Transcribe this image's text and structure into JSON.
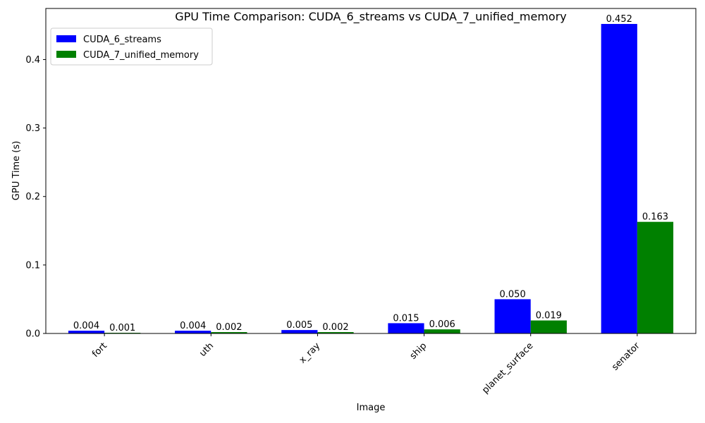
{
  "chart_data": {
    "type": "bar",
    "title": "GPU Time Comparison: CUDA_6_streams vs CUDA_7_unified_memory",
    "xlabel": "Image",
    "ylabel": "GPU Time (s)",
    "categories": [
      "fort",
      "uth",
      "x_ray",
      "ship",
      "planet_surface",
      "senator"
    ],
    "series": [
      {
        "name": "CUDA_6_streams",
        "color": "#0000ff",
        "values": [
          0.004,
          0.004,
          0.005,
          0.015,
          0.05,
          0.452
        ],
        "labels": [
          "0.004",
          "0.004",
          "0.005",
          "0.015",
          "0.050",
          "0.452"
        ]
      },
      {
        "name": "CUDA_7_unified_memory",
        "color": "#008000",
        "values": [
          0.001,
          0.002,
          0.002,
          0.006,
          0.019,
          0.163
        ],
        "labels": [
          "0.001",
          "0.002",
          "0.002",
          "0.006",
          "0.019",
          "0.163"
        ]
      }
    ],
    "ylim": [
      0,
      0.4746
    ],
    "yticks": [
      0.0,
      0.1,
      0.2,
      0.3,
      0.4
    ],
    "ytick_labels": [
      "0.0",
      "0.1",
      "0.2",
      "0.3",
      "0.4"
    ],
    "grid": false,
    "legend_position": "top-left"
  }
}
